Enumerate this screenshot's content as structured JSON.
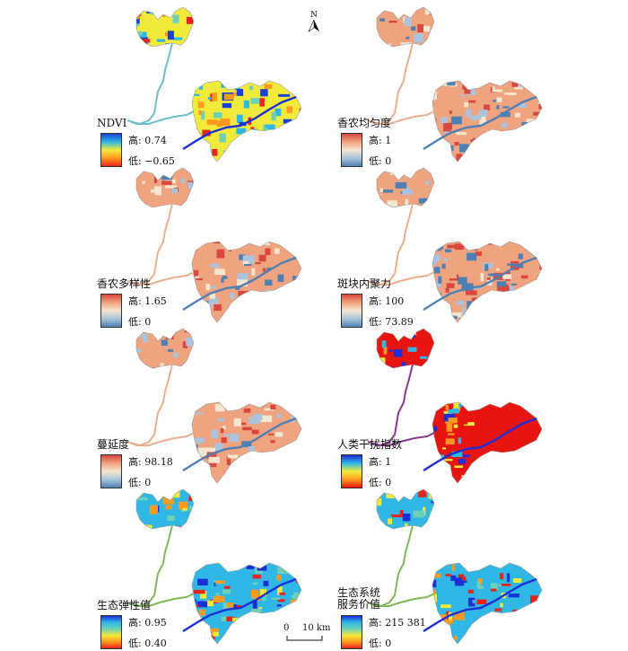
{
  "north_label": "N",
  "scale_bar": {
    "zero": "0",
    "distance": "10 km"
  },
  "panels": [
    {
      "id": "ndvi",
      "title": "NDVI",
      "high_label": "高: 0.74",
      "low_label": "低: −0.65",
      "palette": "ndvi",
      "colors": [
        "#1a3fd8",
        "#2fb8e6",
        "#6fd0b8",
        "#f2ea3a",
        "#ff9a1f",
        "#e8231c"
      ]
    },
    {
      "id": "shannon-evenness",
      "title": "香农均匀度",
      "high_label": "高: 1",
      "low_label": "低: 0",
      "palette": "diverging",
      "colors": [
        "#d9473f",
        "#f0a37f",
        "#f5e6cf",
        "#a9c4dc",
        "#4f80b4"
      ]
    },
    {
      "id": "shannon-diversity",
      "title": "香农多样性",
      "high_label": "高: 1.65",
      "low_label": "低: 0",
      "palette": "diverging",
      "colors": [
        "#d9473f",
        "#f0a37f",
        "#f5e6cf",
        "#a9c4dc",
        "#4f80b4"
      ]
    },
    {
      "id": "patch-cohesion",
      "title": "斑块内聚力",
      "high_label": "高: 100",
      "low_label": "低: 73.89",
      "palette": "diverging",
      "colors": [
        "#d9473f",
        "#f0a37f",
        "#f5e6cf",
        "#a9c4dc",
        "#4f80b4"
      ]
    },
    {
      "id": "contagion",
      "title": "蔓延度",
      "high_label": "高: 98.18",
      "low_label": "低: 0",
      "palette": "diverging",
      "colors": [
        "#d9473f",
        "#f0a37f",
        "#f5e6cf",
        "#a9c4dc",
        "#4f80b4"
      ]
    },
    {
      "id": "human-disturbance",
      "title": "人类干扰指数",
      "high_label": "高: 1",
      "low_label": "低: 0",
      "palette": "disturbance",
      "colors": [
        "#1a2fd8",
        "#2fb8e6",
        "#f2ea3a",
        "#ff9a1f",
        "#e8140f"
      ]
    },
    {
      "id": "ecological-resilience",
      "title": "生态弹性值",
      "high_label": "高: 0.95",
      "low_label": "低: 0.40",
      "palette": "rainbow",
      "colors": [
        "#1a2fd8",
        "#2fb8e6",
        "#6fd0b8",
        "#f2ea3a",
        "#ff9a1f",
        "#e8231c"
      ]
    },
    {
      "id": "ecosystem-service-value",
      "title": "生态系统\n服务价值",
      "high_label": "高: 215 381",
      "low_label": "低: 0",
      "palette": "rainbow",
      "colors": [
        "#1a2fd8",
        "#2fb8e6",
        "#6fd0b8",
        "#f2ea3a",
        "#ff9a1f",
        "#e8231c"
      ]
    }
  ]
}
